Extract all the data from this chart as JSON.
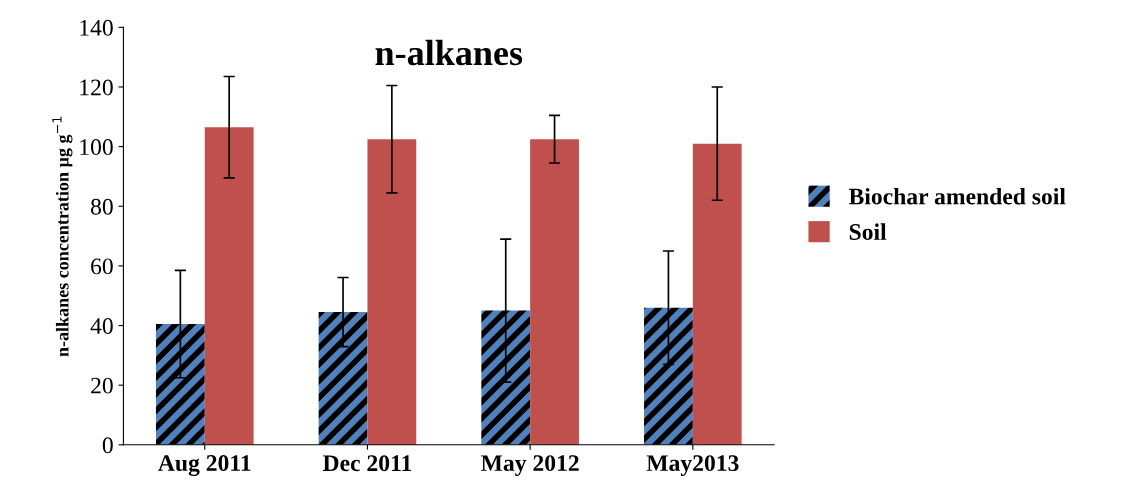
{
  "chart_data": {
    "type": "bar",
    "title": "n-alkanes",
    "ylabel": "n-alkanes concentration µg g$^{−1}$",
    "categories": [
      "Aug 2011",
      "Dec 2011",
      "May 2012",
      "May2013"
    ],
    "series": [
      {
        "name": "Biochar amended soil",
        "color": "#4f81bd",
        "values": [
          40.5,
          44.5,
          45,
          46
        ],
        "errors": [
          18,
          11.6,
          24,
          19
        ]
      },
      {
        "name": "Soil",
        "color": "#c0504d",
        "values": [
          106.5,
          102.5,
          102.5,
          101
        ],
        "errors": [
          17,
          18,
          8,
          19
        ]
      }
    ],
    "ylim": [
      0,
      140
    ],
    "yticks": [
      0,
      20,
      40,
      60,
      80,
      100,
      120,
      140
    ],
    "grid": false,
    "legend": "right"
  }
}
